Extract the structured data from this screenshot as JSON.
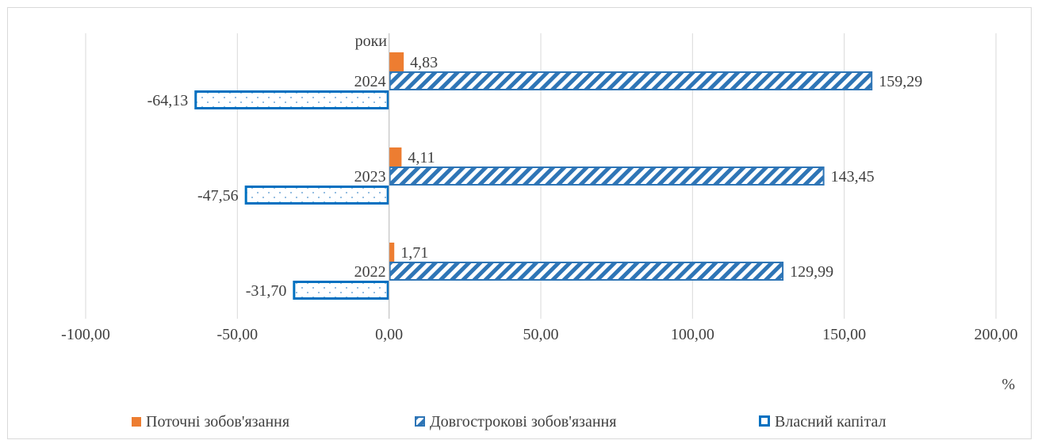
{
  "chart_data": {
    "type": "bar",
    "orientation": "horizontal",
    "categories": [
      "2022",
      "2023",
      "2024"
    ],
    "category_axis_title": "роки",
    "value_axis_title": "%",
    "xlim": [
      -100,
      200
    ],
    "x_ticks": [
      -100,
      -50,
      0,
      50,
      100,
      150,
      200
    ],
    "x_tick_labels": [
      "-100,00",
      "-50,00",
      "0,00",
      "50,00",
      "100,00",
      "150,00",
      "200,00"
    ],
    "grid": "vertical",
    "legend_position": "bottom",
    "series": [
      {
        "name": "Поточні зобов'язання",
        "values": [
          1.71,
          4.11,
          4.83
        ],
        "labels": [
          "1,71",
          "4,11",
          "4,83"
        ],
        "color": "#ed7d31",
        "fill": "solid"
      },
      {
        "name": "Довгострокові зобов'язання",
        "values": [
          129.99,
          143.45,
          159.29
        ],
        "labels": [
          "129,99",
          "143,45",
          "159,29"
        ],
        "color": "#2e75b6",
        "fill": "diagonal-stripes"
      },
      {
        "name": "Власний капітал",
        "values": [
          -31.7,
          -47.56,
          -64.13
        ],
        "labels": [
          "-31,70",
          "-47,56",
          "-64,13"
        ],
        "color": "#0070c0",
        "fill": "dotted"
      }
    ]
  }
}
